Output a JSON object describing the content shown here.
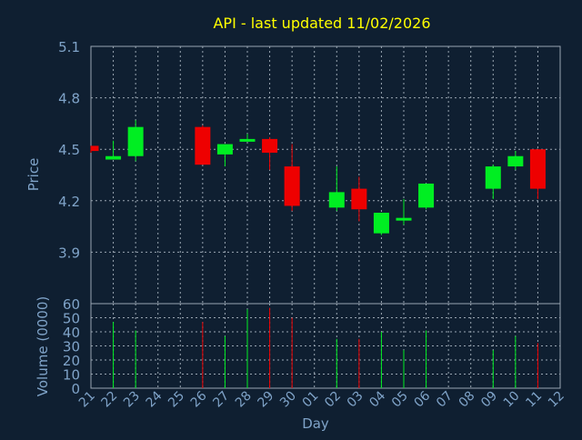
{
  "colors": {
    "background": "#0f1f31",
    "grid": "#9aa6b2",
    "axis_text": "#7fa3c8",
    "title": "#ffff00",
    "up": "#00ee22",
    "down": "#ee0000"
  },
  "chart_data": [
    {
      "type": "candlestick",
      "title": "API - last updated 11/02/2026",
      "ylabel": "Price",
      "ylim": [
        3.6,
        5.1
      ],
      "yticks": [
        "5.1",
        "4.8",
        "4.5",
        "4.2",
        "3.9"
      ],
      "grid": true,
      "categories": [
        "21",
        "22",
        "23",
        "24",
        "25",
        "26",
        "27",
        "28",
        "29",
        "30",
        "01",
        "02",
        "03",
        "04",
        "05",
        "06",
        "07",
        "08",
        "09",
        "10",
        "11",
        "12"
      ],
      "candles": [
        {
          "day": "21",
          "open": 4.52,
          "high": 4.52,
          "low": 4.48,
          "close": 4.49,
          "volume": null
        },
        {
          "day": "22",
          "open": 4.44,
          "high": 4.55,
          "low": 4.44,
          "close": 4.46,
          "volume": 47
        },
        {
          "day": "23",
          "open": 4.46,
          "high": 4.67,
          "low": 4.43,
          "close": 4.63,
          "volume": 41
        },
        {
          "day": "26",
          "open": 4.63,
          "high": 4.64,
          "low": 4.41,
          "close": 4.41,
          "volume": 47
        },
        {
          "day": "27",
          "open": 4.47,
          "high": 4.53,
          "low": 4.4,
          "close": 4.53,
          "volume": 37
        },
        {
          "day": "28",
          "open": 4.55,
          "high": 4.59,
          "low": 4.55,
          "close": 4.56,
          "volume": 56
        },
        {
          "day": "29",
          "open": 4.56,
          "high": 4.57,
          "low": 4.38,
          "close": 4.48,
          "volume": 57
        },
        {
          "day": "30",
          "open": 4.4,
          "high": 4.53,
          "low": 4.14,
          "close": 4.17,
          "volume": 50
        },
        {
          "day": "02",
          "open": 4.16,
          "high": 4.4,
          "low": 4.14,
          "close": 4.25,
          "volume": 35
        },
        {
          "day": "03",
          "open": 4.27,
          "high": 4.34,
          "low": 4.08,
          "close": 4.15,
          "volume": 35
        },
        {
          "day": "04",
          "open": 4.01,
          "high": 4.13,
          "low": 4.0,
          "close": 4.13,
          "volume": 40
        },
        {
          "day": "05",
          "open": 4.09,
          "high": 4.21,
          "low": 4.06,
          "close": 4.1,
          "volume": 27
        },
        {
          "day": "06",
          "open": 4.16,
          "high": 4.3,
          "low": 4.15,
          "close": 4.3,
          "volume": 41
        },
        {
          "day": "09",
          "open": 4.27,
          "high": 4.41,
          "low": 4.21,
          "close": 4.4,
          "volume": 27
        },
        {
          "day": "10",
          "open": 4.4,
          "high": 4.49,
          "low": 4.38,
          "close": 4.46,
          "volume": 37
        },
        {
          "day": "11",
          "open": 4.5,
          "high": 4.5,
          "low": 4.21,
          "close": 4.27,
          "volume": 32
        }
      ]
    },
    {
      "type": "bar",
      "ylabel": "Volume (0000)",
      "xlabel": "Day",
      "ylim": [
        0,
        60
      ],
      "yticks": [
        "60",
        "50",
        "40",
        "30",
        "20",
        "10",
        "0"
      ],
      "grid": true
    }
  ]
}
